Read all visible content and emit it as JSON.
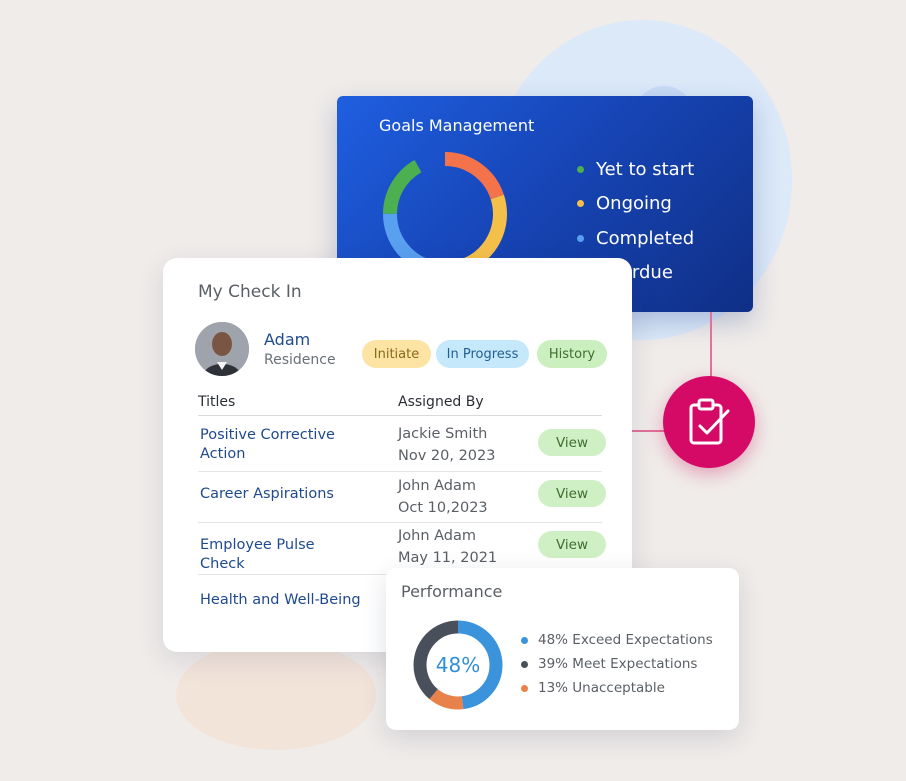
{
  "goals": {
    "title": "Goals Management",
    "legend": [
      {
        "label": "Yet to start",
        "color": "#4caf50"
      },
      {
        "label": "Ongoing",
        "color": "#f5c04a"
      },
      {
        "label": "Completed",
        "color": "#5aa0f0"
      },
      {
        "label": "Overdue",
        "color": "#f5734a"
      }
    ]
  },
  "checkin": {
    "title": "My Check In",
    "user": {
      "name": "Adam",
      "role": "Residence"
    },
    "pills": {
      "initiate": "Initiate",
      "in_progress": "In Progress",
      "history": "History"
    },
    "columns": {
      "titles": "Titles",
      "assigned_by": "Assigned By"
    },
    "rows": [
      {
        "title": "Positive Corrective Action",
        "name": "Jackie Smith",
        "date": "Nov 20, 2023",
        "action": "View"
      },
      {
        "title": "Career Aspirations",
        "name": "John Adam",
        "date": "Oct 10,2023",
        "action": "View"
      },
      {
        "title": "Employee Pulse Check",
        "name": "John Adam",
        "date": "May 11, 2021",
        "action": "View"
      },
      {
        "title": "Health and Well-Being",
        "name": "",
        "date": "",
        "action": ""
      }
    ]
  },
  "performance": {
    "title": "Performance",
    "center_label": "48%",
    "legend": [
      {
        "label": "48% Exceed Expectations",
        "value": 48,
        "color": "#3b93dc"
      },
      {
        "label": "39% Meet Expectations",
        "value": 39,
        "color": "#4a4f5c"
      },
      {
        "label": "13% Unacceptable",
        "value": 13,
        "color": "#e8824a"
      }
    ]
  },
  "icons": {
    "checklist": "clipboard-check-icon"
  },
  "colors": {
    "goals_bg": "#1746b8",
    "accent_pink": "#d40a66",
    "link_blue": "#1f4a8e"
  }
}
